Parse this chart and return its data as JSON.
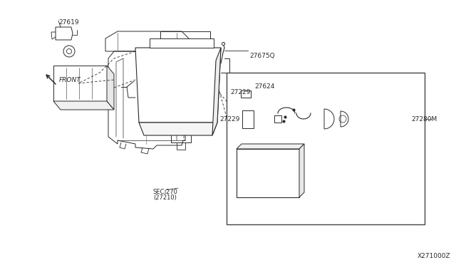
{
  "bg_color": "#ffffff",
  "line_color": "#2a2a2a",
  "diagram_id": "X271000Z",
  "labels": {
    "front": "FRONT",
    "p27229a": "27229",
    "p27624": "27624",
    "p27229b": "27229",
    "p27280M": "27280M",
    "p27675Q": "27675Q",
    "p27619": "27619",
    "sec270": "SEC.270",
    "sec270b": "(27210)"
  },
  "figsize": [
    6.4,
    3.72
  ],
  "dpi": 100
}
